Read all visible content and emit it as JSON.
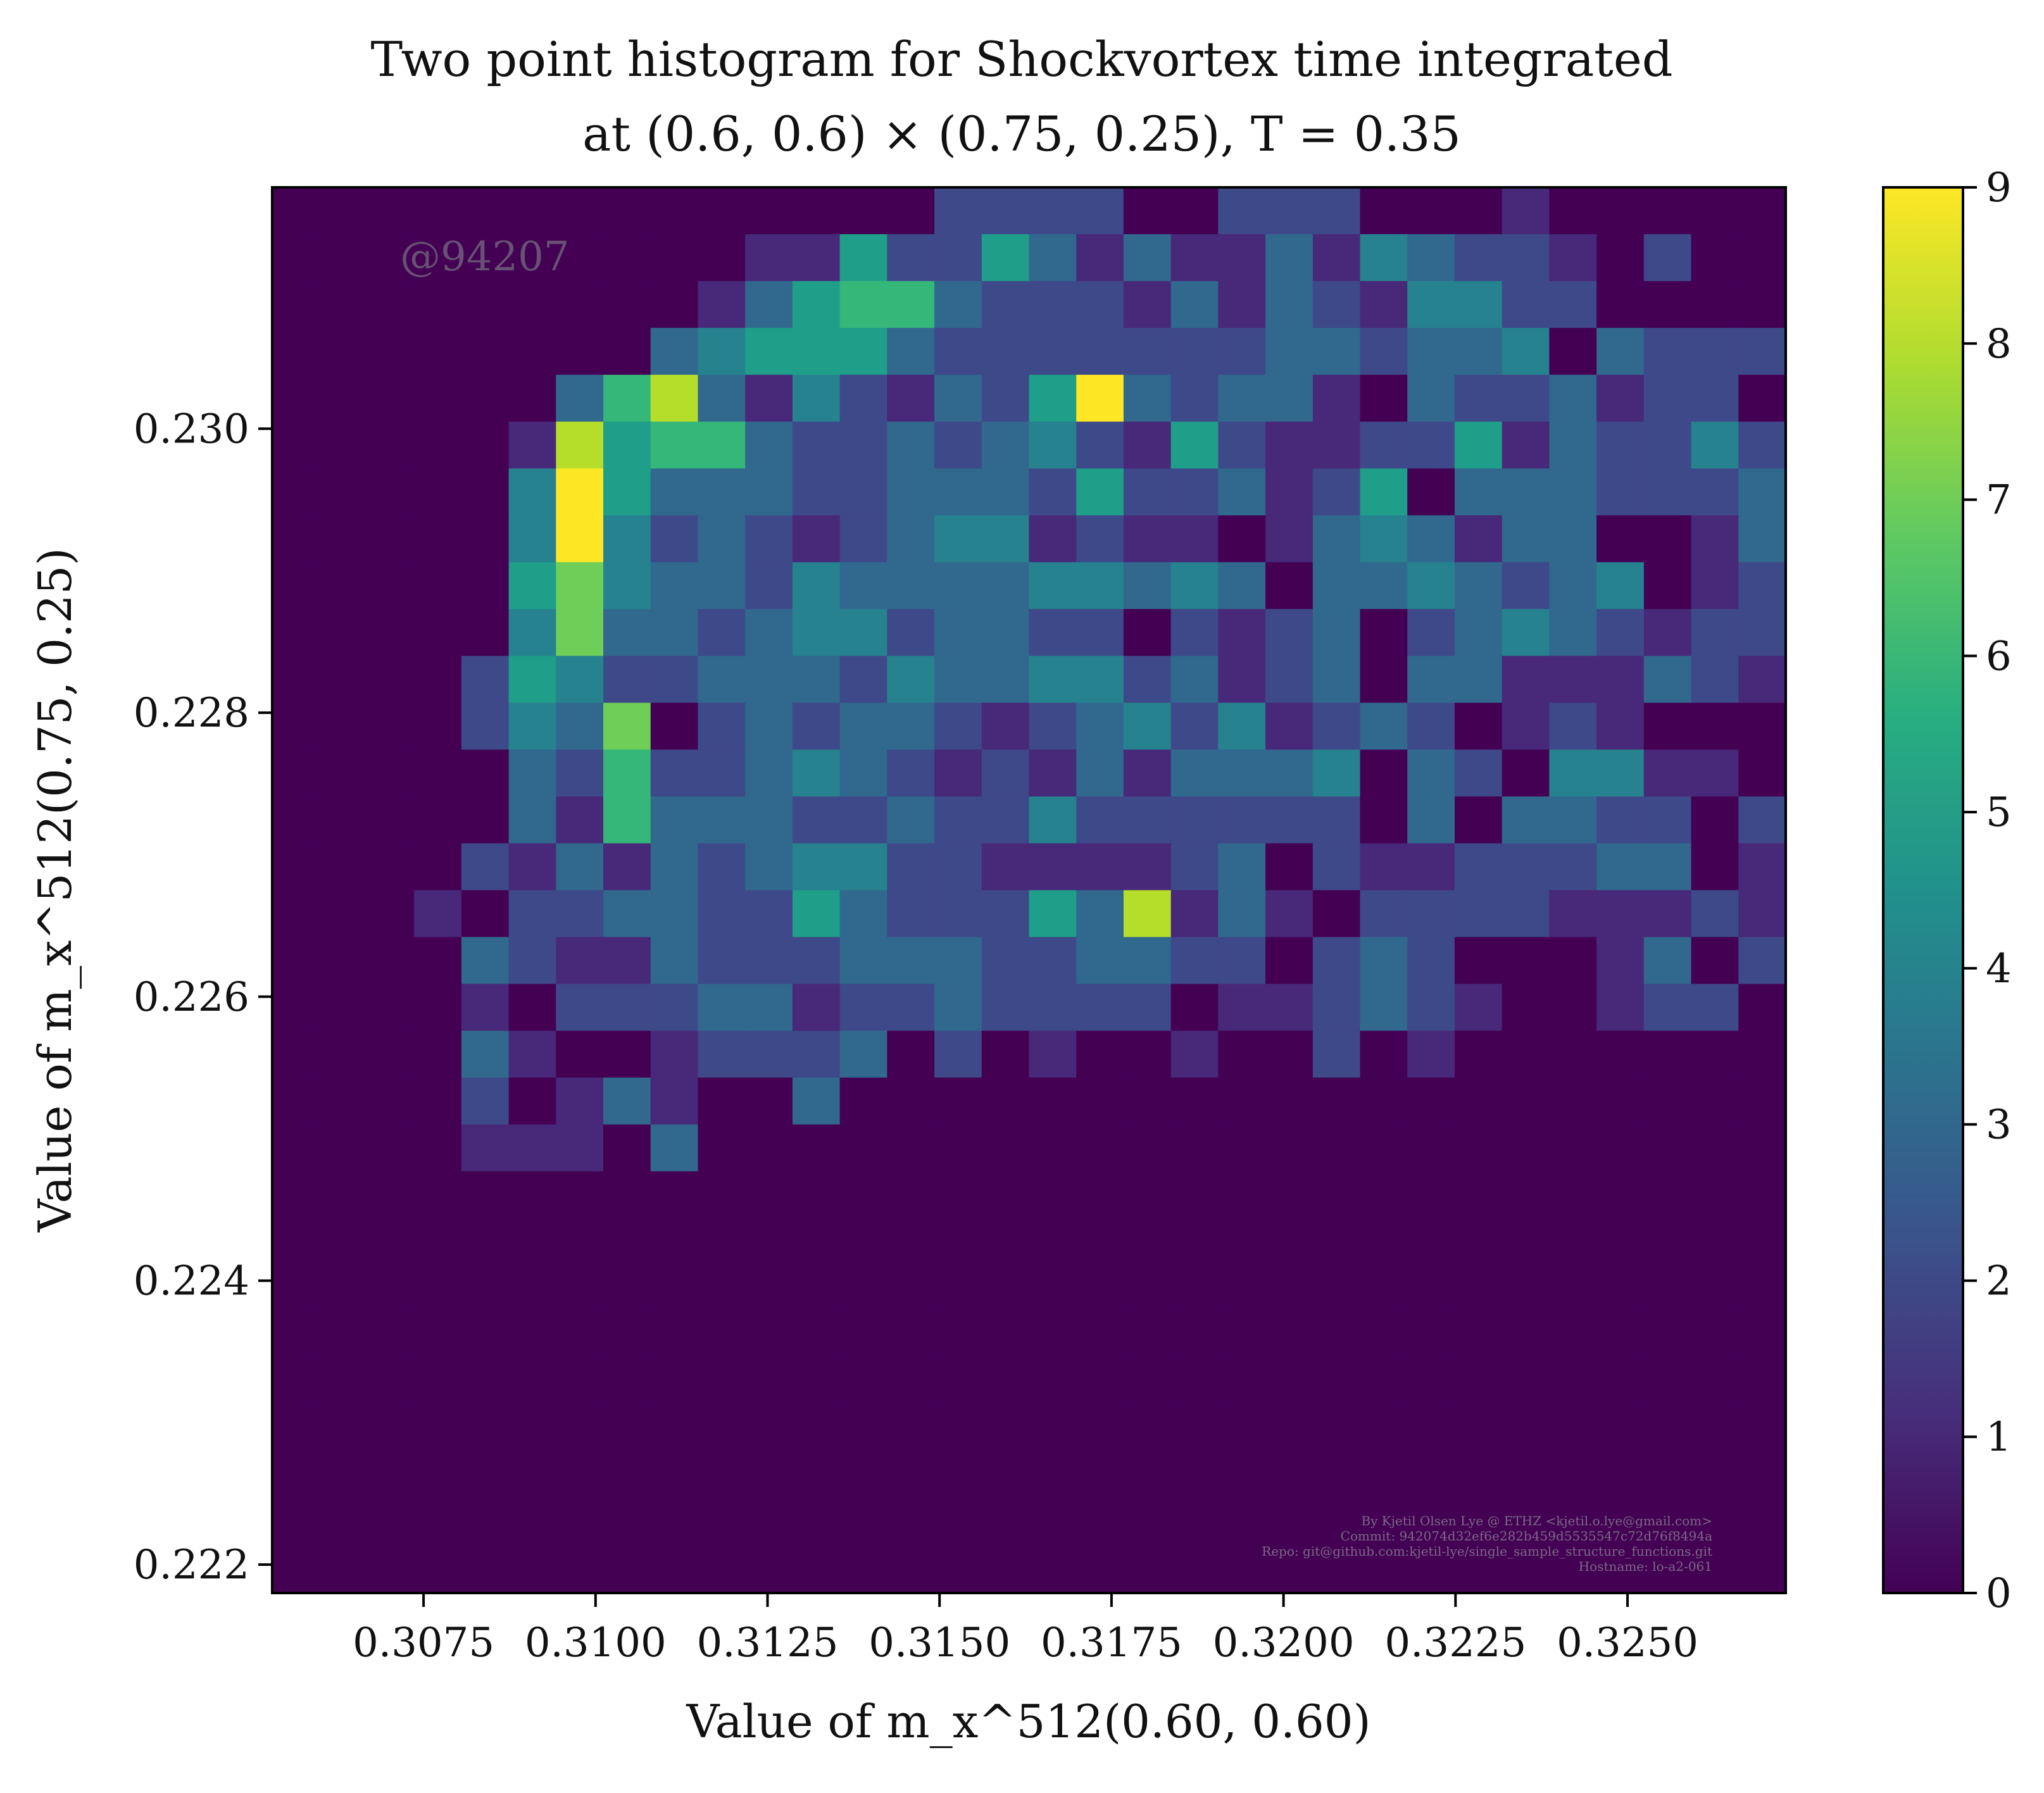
{
  "chart_data": {
    "type": "heatmap",
    "title_line1": "Two point histogram for Shockvortex time integrated",
    "title_line2": "at (0.6, 0.6) × (0.75, 0.25), T = 0.35",
    "xlabel": "Value of m_x^512(0.60, 0.60)",
    "ylabel": "Value of m_x^512(0.75, 0.25)",
    "xlim": [
      0.3053,
      0.3273
    ],
    "ylim": [
      0.2218,
      0.2317
    ],
    "xticks": [
      0.3075,
      0.31,
      0.3125,
      0.315,
      0.3175,
      0.32,
      0.3225,
      0.325
    ],
    "xtick_labels": [
      "0.3075",
      "0.3100",
      "0.3125",
      "0.3150",
      "0.3175",
      "0.3200",
      "0.3225",
      "0.3250"
    ],
    "yticks": [
      0.222,
      0.224,
      0.226,
      0.228,
      0.23
    ],
    "ytick_labels": [
      "0.222",
      "0.224",
      "0.226",
      "0.228",
      "0.230"
    ],
    "colorbar_ticks": [
      0,
      1,
      2,
      3,
      4,
      5,
      6,
      7,
      8,
      9
    ],
    "colorbar_tick_labels": [
      "0",
      "1",
      "2",
      "3",
      "4",
      "5",
      "6",
      "7",
      "8",
      "9"
    ],
    "vmin": 0,
    "vmax": 9,
    "colormap": "viridis",
    "grid": false,
    "bins_x": 32,
    "bins_y": 30,
    "counts_top_row_first": [
      "00000000000000222200222000100000",
      "00000000001152253131131432210200",
      "00000000013566322213132144220000",
      "00000000345553222222233233403222",
      "00000036831421325932331032231220",
      "00000185663223234215211225132242",
      "00000495333223332522312503332223",
      "00000494232123441211013431330013",
      "00000574332433334434303343234012",
      "00000473323442332202123023432122",
      "00002542233324334423123033111321",
      "00002437023233212342412320121000",
      "00000326223432121313334032044110",
      "00000316333223224222222030332202",
      "00002131323442211112302112223301",
      "00010223322532225381310222211121",
      "00003211322233322332202320001302",
      "00001022233122322220112321001220",
      "00003100122230201001002010000000",
      "00002013100300000000000000000000",
      "00001110300000000000000000000000",
      "00000000000000000000000000000000",
      "00000000000000000000000000000000",
      "00000000000000000000000000000000",
      "00000000000000000000000000000000",
      "00000000000000000000000000000000",
      "00000000000000000000000000000000",
      "00000000000000000000000000000000",
      "00000000000000000000000000000000",
      "00000000000000000000000000000000"
    ],
    "watermark": "@94207",
    "credits": [
      "By Kjetil Olsen Lye @ ETHZ <kjetil.o.lye@gmail.com>",
      "Commit: 942074d32ef6e282b459d5535547c72d76f8494a",
      "Repo: git@github.com:kjetil-lye/single_sample_structure_functions.git",
      "Hostname: lo-a2-061"
    ]
  }
}
